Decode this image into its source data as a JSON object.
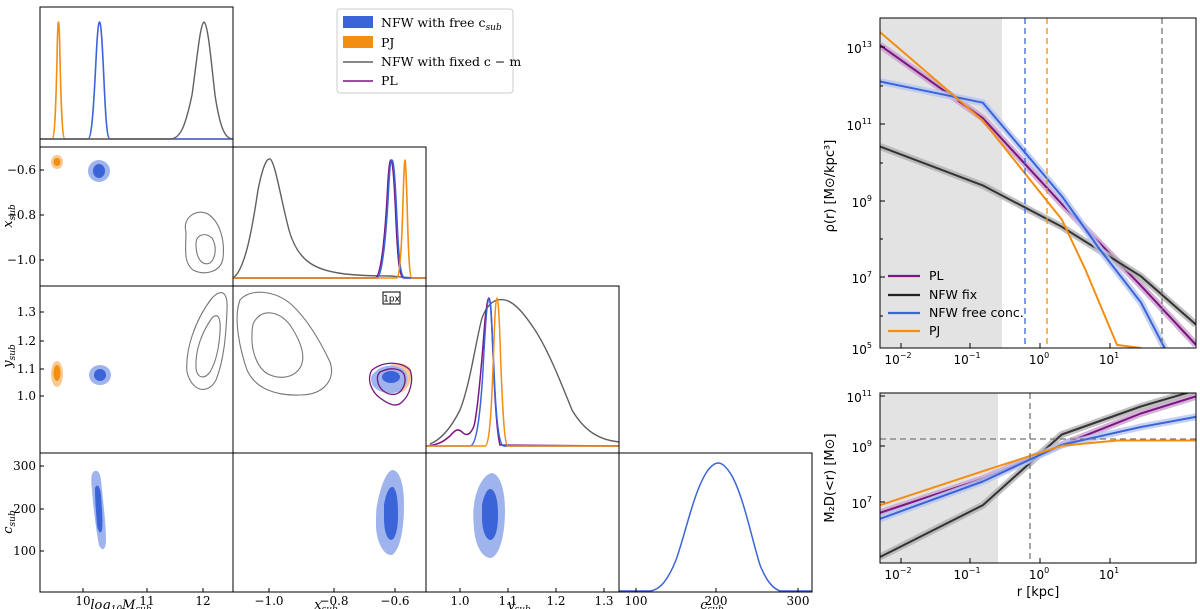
{
  "colors": {
    "nfw_free": "#3b64d9",
    "nfw_free_light": "#9fb4ec",
    "pj": "#f28e12",
    "nfw_fixed": "#606060",
    "pl": "#7b1582",
    "shade": "#e3e3e3"
  },
  "corner_legend": {
    "items": [
      {
        "label": "NFW with free c",
        "sub": "sub",
        "style": "patch-blue"
      },
      {
        "label": "PJ",
        "sub": "",
        "style": "patch-orange"
      },
      {
        "label": "NFW with fixed c − m",
        "sub": "",
        "style": "line-gray"
      },
      {
        "label": "PL",
        "sub": "",
        "style": "line-purple"
      }
    ]
  },
  "annotation": "1px",
  "chart_data": [
    {
      "type": "corner",
      "title": "",
      "params": [
        "log10Msub",
        "xsub",
        "ysub",
        "csub"
      ],
      "xlabels": {
        "main": [
          "log",
          "M",
          "x",
          "y",
          "c"
        ],
        "subs": [
          "10",
          "sub",
          "sub",
          "sub",
          "sub"
        ]
      },
      "ylabels": [
        {
          "main": "x",
          "sub": "sub"
        },
        {
          "main": "y",
          "sub": "sub"
        },
        {
          "main": "c",
          "sub": "sub"
        }
      ],
      "ranges": {
        "log10Msub": [
          9.2,
          12.6
        ],
        "xsub": [
          -1.17,
          -0.53
        ],
        "ysub": [
          0.92,
          1.39
        ],
        "csub": [
          80,
          320
        ]
      },
      "ticks": {
        "log10Msub": [
          "10",
          "11",
          "12"
        ],
        "xsub_x": [
          "−1.0",
          "−0.8",
          "−0.6"
        ],
        "xsub_y": [
          "−0.6",
          "−0.8",
          "−1.0"
        ],
        "ysub_x": [
          "1.0",
          "1.1",
          "1.2",
          "1.3"
        ],
        "ysub_y": [
          "1.3",
          "1.2",
          "1.1",
          "1.0"
        ],
        "csub_x": [
          "100",
          "200",
          "300"
        ],
        "csub_y": [
          "300",
          "200",
          "100"
        ]
      },
      "series_means": {
        "NFW with free c_sub": {
          "log10Msub": 10.3,
          "xsub": -0.61,
          "ysub": 1.075,
          "csub": 195
        },
        "PJ": {
          "log10Msub": 9.55,
          "xsub": -0.57,
          "ysub": 1.085
        },
        "NFW with fixed c-m": {
          "log10Msub": 12.0,
          "xsub": -0.99,
          "ysub": 1.15
        },
        "PL": {
          "xsub": -0.605,
          "ysub": 1.07
        }
      }
    },
    {
      "type": "line",
      "title": "",
      "xlabel": "",
      "ylabel": "ρ(r) [M⊙/kpc³]",
      "xscale": "log",
      "yscale": "log",
      "xlim": [
        0.005,
        50
      ],
      "ylim": [
        100000,
        30000000000000
      ],
      "xticks": [
        "10",
        "10",
        "10",
        "10"
      ],
      "xtick_exps": [
        "−2",
        "−1",
        "0",
        "1"
      ],
      "yticks": [
        "10",
        "10",
        "10",
        "10",
        "10"
      ],
      "ytick_exps": [
        "13",
        "11",
        "9",
        "7",
        "5"
      ],
      "shaded_region": [
        0.005,
        0.17
      ],
      "vlines": [
        {
          "x": 0.32,
          "color": "blue"
        },
        {
          "x": 0.62,
          "color": "orange"
        },
        {
          "x": 18,
          "color": "gray"
        }
      ],
      "legend": [
        "PL",
        "NFW fix",
        "NFW free conc.",
        "PJ"
      ],
      "series": [
        {
          "name": "PL",
          "x": [
            0.005,
            0.1,
            1,
            10,
            50
          ],
          "y": [
            6000000000000.0,
            80000000000.0,
            500000000.0,
            4000000.0,
            120000.0
          ]
        },
        {
          "name": "NFW fix",
          "x": [
            0.005,
            0.1,
            1,
            10,
            50
          ],
          "y": [
            15000000000.0,
            1500000000.0,
            130000000.0,
            7000000.0,
            400000.0
          ]
        },
        {
          "name": "NFW free conc.",
          "x": [
            0.005,
            0.1,
            1,
            3,
            10,
            20
          ],
          "y": [
            700000000000.0,
            200000000000.0,
            800000000.0,
            35000000.0,
            1500000.0,
            100000.0
          ]
        },
        {
          "name": "PJ",
          "x": [
            0.005,
            0.1,
            1,
            2,
            5,
            10
          ],
          "y": [
            13000000000000.0,
            70000000000.0,
            200000000.0,
            10000000.0,
            120000.0,
            100000.0
          ]
        }
      ]
    },
    {
      "type": "line",
      "title": "",
      "xlabel": "r [kpc]",
      "ylabel": "M₂D(<r) [M⊙]",
      "xscale": "log",
      "yscale": "log",
      "xlim": [
        0.005,
        50
      ],
      "ylim": [
        1000000,
        100000000000
      ],
      "xticks": [
        "10",
        "10",
        "10",
        "10"
      ],
      "xtick_exps": [
        "−2",
        "−1",
        "0",
        "1"
      ],
      "yticks": [
        "10",
        "10",
        "10"
      ],
      "ytick_exps": [
        "11",
        "9",
        "7"
      ],
      "shaded_region": [
        0.005,
        0.17
      ],
      "hline": 2000000000,
      "vline": 0.45,
      "series": [
        {
          "name": "PL",
          "x": [
            0.005,
            0.1,
            1,
            10,
            50
          ],
          "y": [
            30000000.0,
            300000000.0,
            3000000000.0,
            25000000000.0,
            80000000000.0
          ]
        },
        {
          "name": "NFW fix",
          "x": [
            0.005,
            0.1,
            1,
            10,
            50
          ],
          "y": [
            1500000.0,
            50000000.0,
            6000000000.0,
            40000000000.0,
            120000000000.0
          ]
        },
        {
          "name": "NFW free conc.",
          "x": [
            0.005,
            0.1,
            1,
            10,
            50
          ],
          "y": [
            20000000.0,
            250000000.0,
            3000000000.0,
            10000000000.0,
            20000000000.0
          ]
        },
        {
          "name": "PJ",
          "x": [
            0.005,
            0.1,
            1,
            5,
            50
          ],
          "y": [
            50000000.0,
            500000000.0,
            2800000000.0,
            4000000000.0,
            4000000000.0
          ]
        }
      ]
    }
  ]
}
